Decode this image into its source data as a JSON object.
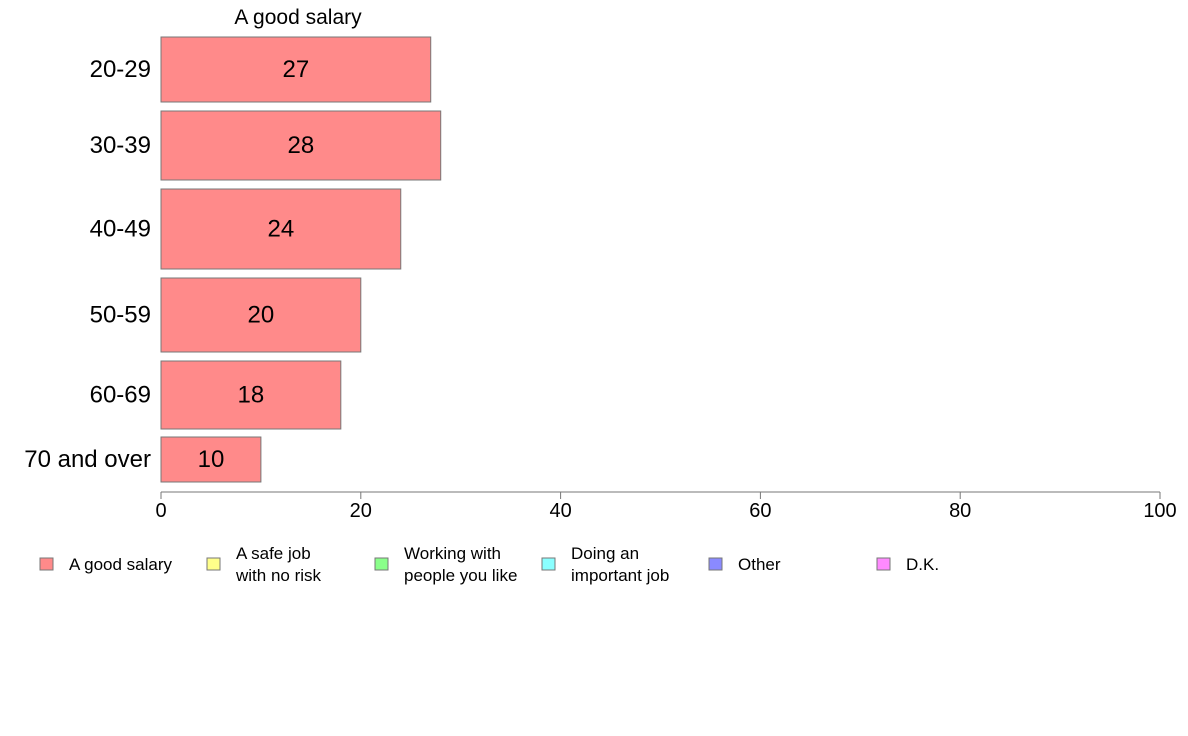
{
  "chart_data": {
    "type": "bar",
    "orientation": "horizontal",
    "series_title": "A good salary",
    "categories": [
      "20-29",
      "30-39",
      "40-49",
      "50-59",
      "60-69",
      "70 and over"
    ],
    "series": [
      {
        "name": "A good salary",
        "values": [
          27,
          28,
          24,
          20,
          18,
          10
        ]
      }
    ],
    "xlim": [
      0,
      100
    ],
    "xticks": [
      0,
      20,
      40,
      60,
      80,
      100
    ],
    "grid": false,
    "legend_position": "bottom",
    "legend": [
      {
        "label": "A good salary",
        "color": "#ff8a8a"
      },
      {
        "label": "A safe job\nwith no risk",
        "color": "#ffff8a"
      },
      {
        "label": "Working with\npeople you like",
        "color": "#8aff8a"
      },
      {
        "label": "Doing an\nimportant job",
        "color": "#8affff"
      },
      {
        "label": "Other",
        "color": "#8a8aff"
      },
      {
        "label": "D.K.",
        "color": "#ff8aff"
      }
    ]
  }
}
